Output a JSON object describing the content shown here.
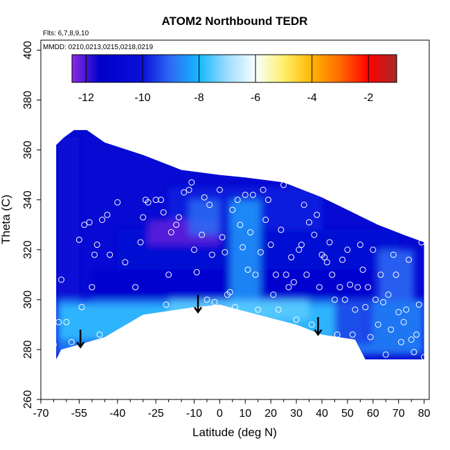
{
  "chart_data": {
    "type": "heatmap",
    "title": "ATOM2 Northbound TEDR",
    "subtitle_flights": "Flts: 6,7,8,9,10",
    "subtitle_dates": "MMDD: 0210,0213,0215,0218,0219",
    "xlabel": "Latitude (deg N)",
    "ylabel": "Theta (C)",
    "xlim": [
      -70,
      82
    ],
    "ylim": [
      260,
      404
    ],
    "x_ticks": [
      -70,
      -55,
      -40,
      -25,
      -10,
      0,
      10,
      20,
      30,
      40,
      50,
      60,
      70,
      80
    ],
    "y_ticks": [
      260,
      280,
      300,
      320,
      340,
      360,
      380,
      400
    ],
    "colorbar": {
      "ticks": [
        -12,
        -10,
        -8,
        -6,
        -4,
        -2
      ],
      "range": [
        -12.5,
        -1
      ],
      "stops": [
        {
          "value": -12.5,
          "color": "#8a2be2"
        },
        {
          "value": -11.5,
          "color": "#0000c8"
        },
        {
          "value": -10,
          "color": "#0a10d8"
        },
        {
          "value": -9,
          "color": "#2d6cf5"
        },
        {
          "value": -8,
          "color": "#14b8ff"
        },
        {
          "value": -7,
          "color": "#9fdcff"
        },
        {
          "value": -6,
          "color": "#f8ffff"
        },
        {
          "value": -5,
          "color": "#fff06a"
        },
        {
          "value": -4,
          "color": "#ffb400"
        },
        {
          "value": -3,
          "color": "#ff6a00"
        },
        {
          "value": -2,
          "color": "#ff0000"
        },
        {
          "value": -1,
          "color": "#a52a2a"
        }
      ]
    },
    "domain_upper": [
      [
        -64,
        362
      ],
      [
        -61,
        365
      ],
      [
        -57,
        368
      ],
      [
        -52,
        368
      ],
      [
        -45,
        363
      ],
      [
        -30,
        358
      ],
      [
        -15,
        352
      ],
      [
        0,
        350
      ],
      [
        10,
        349
      ],
      [
        25,
        347
      ],
      [
        40,
        341
      ],
      [
        52,
        335
      ],
      [
        62,
        330
      ],
      [
        72,
        326
      ],
      [
        80,
        323
      ]
    ],
    "domain_lower": [
      [
        80,
        276
      ],
      [
        74,
        276
      ],
      [
        66,
        276
      ],
      [
        57,
        276
      ],
      [
        53,
        284
      ],
      [
        40,
        286
      ],
      [
        30,
        290
      ],
      [
        15,
        294
      ],
      [
        0,
        298
      ],
      [
        -10,
        297
      ],
      [
        -30,
        294
      ],
      [
        -45,
        285
      ],
      [
        -55,
        282
      ],
      [
        -62,
        280
      ],
      [
        -64,
        276
      ]
    ],
    "arrows": [
      {
        "lat": -54.5,
        "theta_top": 288,
        "theta_bottom": 281
      },
      {
        "lat": -8.5,
        "theta_top": 302,
        "theta_bottom": 295
      },
      {
        "lat": 38.5,
        "theta_top": 293,
        "theta_bottom": 286
      }
    ],
    "regions": [
      {
        "shape": "band",
        "x": [
          -64,
          80
        ],
        "y": [
          278,
          300
        ],
        "value": -8.6
      },
      {
        "shape": "band",
        "x": [
          -63,
          55
        ],
        "y": [
          284,
          298
        ],
        "value": -7.8
      },
      {
        "shape": "band",
        "x": [
          -20,
          35
        ],
        "y": [
          292,
          302
        ],
        "value": -7.5
      },
      {
        "shape": "band",
        "x": [
          -63,
          -55
        ],
        "y": [
          300,
          365
        ],
        "value": -10.2
      },
      {
        "shape": "band",
        "x": [
          -50,
          60
        ],
        "y": [
          300,
          312
        ],
        "value": -10.8
      },
      {
        "shape": "band",
        "x": [
          -40,
          70
        ],
        "y": [
          312,
          328
        ],
        "value": -10.5
      },
      {
        "shape": "band",
        "x": [
          -20,
          40
        ],
        "y": [
          328,
          345
        ],
        "value": -9.8
      },
      {
        "shape": "band",
        "x": [
          -28,
          0
        ],
        "y": [
          322,
          332
        ],
        "value": -12.2
      },
      {
        "shape": "band",
        "x": [
          -12,
          0
        ],
        "y": [
          326,
          340
        ],
        "value": -9.0
      },
      {
        "shape": "band",
        "x": [
          4,
          16
        ],
        "y": [
          300,
          340
        ],
        "value": -8.4
      },
      {
        "shape": "band",
        "x": [
          62,
          76
        ],
        "y": [
          300,
          320
        ],
        "value": -9.0
      },
      {
        "shape": "band",
        "x": [
          45,
          60
        ],
        "y": [
          282,
          300
        ],
        "value": -9.5
      }
    ],
    "points": [
      [
        -68,
        335
      ],
      [
        -67,
        290
      ],
      [
        -66,
        360
      ],
      [
        -66,
        300
      ],
      [
        -65,
        282
      ],
      [
        -63,
        291
      ],
      [
        -62,
        308
      ],
      [
        -61,
        278
      ],
      [
        -60,
        291
      ],
      [
        -58,
        283
      ],
      [
        -55,
        324
      ],
      [
        -54,
        297
      ],
      [
        -53,
        330
      ],
      [
        -51,
        331
      ],
      [
        -50,
        305
      ],
      [
        -49,
        318
      ],
      [
        -48,
        322
      ],
      [
        -47,
        286
      ],
      [
        -46,
        332
      ],
      [
        -44,
        334
      ],
      [
        -43,
        318
      ],
      [
        -40,
        339
      ],
      [
        -37,
        315
      ],
      [
        -33,
        305
      ],
      [
        -31,
        323
      ],
      [
        -30,
        333
      ],
      [
        -29,
        340
      ],
      [
        -28,
        339
      ],
      [
        -25,
        340
      ],
      [
        -23,
        340
      ],
      [
        -22,
        335
      ],
      [
        -21,
        298
      ],
      [
        -20,
        310
      ],
      [
        -19,
        327
      ],
      [
        -17,
        330
      ],
      [
        -16,
        333
      ],
      [
        -14,
        343
      ],
      [
        -12,
        344
      ],
      [
        -11,
        347
      ],
      [
        -10,
        320
      ],
      [
        -9,
        311
      ],
      [
        -7,
        326
      ],
      [
        -6,
        341
      ],
      [
        -5,
        300
      ],
      [
        -4,
        338
      ],
      [
        -3,
        318
      ],
      [
        -2,
        299
      ],
      [
        0,
        344
      ],
      [
        1,
        325
      ],
      [
        2,
        319
      ],
      [
        3,
        302
      ],
      [
        4,
        303
      ],
      [
        5,
        336
      ],
      [
        6,
        297
      ],
      [
        7,
        340
      ],
      [
        8,
        330
      ],
      [
        9,
        321
      ],
      [
        10,
        342
      ],
      [
        11,
        312
      ],
      [
        12,
        327
      ],
      [
        13,
        342
      ],
      [
        14,
        310
      ],
      [
        15,
        296
      ],
      [
        16,
        319
      ],
      [
        17,
        344
      ],
      [
        18,
        332
      ],
      [
        19,
        340
      ],
      [
        20,
        322
      ],
      [
        21,
        302
      ],
      [
        22,
        310
      ],
      [
        23,
        296
      ],
      [
        24,
        328
      ],
      [
        25,
        346
      ],
      [
        26,
        310
      ],
      [
        27,
        305
      ],
      [
        28,
        317
      ],
      [
        29,
        307
      ],
      [
        30,
        292
      ],
      [
        31,
        320
      ],
      [
        32,
        322
      ],
      [
        33,
        338
      ],
      [
        34,
        310
      ],
      [
        35,
        331
      ],
      [
        36,
        290
      ],
      [
        37,
        326
      ],
      [
        38,
        334
      ],
      [
        39,
        305
      ],
      [
        40,
        318
      ],
      [
        41,
        317
      ],
      [
        42,
        315
      ],
      [
        43,
        323
      ],
      [
        44,
        310
      ],
      [
        45,
        300
      ],
      [
        46,
        286
      ],
      [
        47,
        305
      ],
      [
        48,
        316
      ],
      [
        49,
        300
      ],
      [
        50,
        320
      ],
      [
        51,
        306
      ],
      [
        52,
        286
      ],
      [
        53,
        296
      ],
      [
        54,
        305
      ],
      [
        55,
        322
      ],
      [
        56,
        312
      ],
      [
        57,
        297
      ],
      [
        58,
        305
      ],
      [
        59,
        285
      ],
      [
        60,
        320
      ],
      [
        61,
        300
      ],
      [
        62,
        290
      ],
      [
        63,
        310
      ],
      [
        64,
        299
      ],
      [
        65,
        278
      ],
      [
        66,
        302
      ],
      [
        67,
        288
      ],
      [
        68,
        318
      ],
      [
        69,
        310
      ],
      [
        70,
        295
      ],
      [
        71,
        283
      ],
      [
        72,
        291
      ],
      [
        73,
        296
      ],
      [
        74,
        316
      ],
      [
        75,
        284
      ],
      [
        76,
        279
      ],
      [
        77,
        286
      ],
      [
        78,
        298
      ],
      [
        79,
        323
      ],
      [
        80,
        277
      ]
    ]
  }
}
